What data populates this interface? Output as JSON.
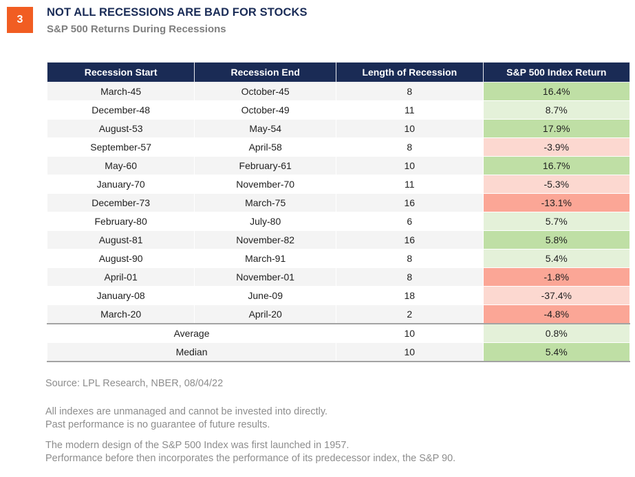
{
  "page": {
    "badge_number": "3",
    "title": "NOT ALL RECESSIONS ARE BAD FOR STOCKS",
    "subtitle": "S&P 500 Returns During Recessions"
  },
  "colors": {
    "accent_orange": "#f15d22",
    "header_navy": "#1a2b55",
    "title_navy": "#1a2c57",
    "stripe_gray": "#f4f4f4",
    "green_strong": "#bfdfa5",
    "green_light": "#e4f1d9",
    "red_strong": "#fba696",
    "red_light": "#fcd8d0",
    "summary_divider_gray": "#a3a3a3"
  },
  "table": {
    "headers": [
      "Recession Start",
      "Recession End",
      "Length of Recession",
      "S&P 500 Index Return"
    ],
    "rows": [
      {
        "start": "March-45",
        "end": "October-45",
        "length": "8",
        "return": "16.4%",
        "return_bg": "#bfdfa5",
        "striped": true
      },
      {
        "start": "December-48",
        "end": "October-49",
        "length": "11",
        "return": "8.7%",
        "return_bg": "#e4f1d9",
        "striped": false
      },
      {
        "start": "August-53",
        "end": "May-54",
        "length": "10",
        "return": "17.9%",
        "return_bg": "#bfdfa5",
        "striped": true
      },
      {
        "start": "September-57",
        "end": "April-58",
        "length": "8",
        "return": "-3.9%",
        "return_bg": "#fcd8d0",
        "striped": false
      },
      {
        "start": "May-60",
        "end": "February-61",
        "length": "10",
        "return": "16.7%",
        "return_bg": "#bfdfa5",
        "striped": true
      },
      {
        "start": "January-70",
        "end": "November-70",
        "length": "11",
        "return": "-5.3%",
        "return_bg": "#fcd8d0",
        "striped": false
      },
      {
        "start": "December-73",
        "end": "March-75",
        "length": "16",
        "return": "-13.1%",
        "return_bg": "#fba696",
        "striped": true
      },
      {
        "start": "February-80",
        "end": "July-80",
        "length": "6",
        "return": "5.7%",
        "return_bg": "#e4f1d9",
        "striped": false
      },
      {
        "start": "August-81",
        "end": "November-82",
        "length": "16",
        "return": "5.8%",
        "return_bg": "#bfdfa5",
        "striped": true
      },
      {
        "start": "August-90",
        "end": "March-91",
        "length": "8",
        "return": "5.4%",
        "return_bg": "#e4f1d9",
        "striped": false
      },
      {
        "start": "April-01",
        "end": "November-01",
        "length": "8",
        "return": "-1.8%",
        "return_bg": "#fba696",
        "striped": true
      },
      {
        "start": "January-08",
        "end": "June-09",
        "length": "18",
        "return": "-37.4%",
        "return_bg": "#fcd8d0",
        "striped": false
      },
      {
        "start": "March-20",
        "end": "April-20",
        "length": "2",
        "return": "-4.8%",
        "return_bg": "#fba696",
        "striped": true
      }
    ],
    "summary_rows": [
      {
        "label": "Average",
        "length": "10",
        "return": "0.8%",
        "return_bg": "#e4f1d9",
        "striped": false
      },
      {
        "label": "Median",
        "length": "10",
        "return": "5.4%",
        "return_bg": "#bfdfa5",
        "striped": true
      }
    ]
  },
  "footnotes": {
    "source": "Source: LPL Research, NBER,  08/04/22",
    "disclaimer_line1": "All indexes are unmanaged and cannot be invested into directly.",
    "disclaimer_line2": "Past performance is no guarantee of future results.",
    "history_line1": "The modern design of the S&P 500 Index was first launched in 1957.",
    "history_line2": "Performance before then incorporates the performance of its predecessor index, the S&P 90."
  },
  "chart_data": {
    "type": "table",
    "title": "NOT ALL RECESSIONS ARE BAD FOR STOCKS",
    "subtitle": "S&P 500 Returns During Recessions",
    "columns": [
      "Recession Start",
      "Recession End",
      "Length of Recession",
      "S&P 500 Index Return"
    ],
    "rows": [
      [
        "March-45",
        "October-45",
        8,
        16.4
      ],
      [
        "December-48",
        "October-49",
        11,
        8.7
      ],
      [
        "August-53",
        "May-54",
        10,
        17.9
      ],
      [
        "September-57",
        "April-58",
        8,
        -3.9
      ],
      [
        "May-60",
        "February-61",
        10,
        16.7
      ],
      [
        "January-70",
        "November-70",
        11,
        -5.3
      ],
      [
        "December-73",
        "March-75",
        16,
        -13.1
      ],
      [
        "February-80",
        "July-80",
        6,
        5.7
      ],
      [
        "August-81",
        "November-82",
        16,
        5.8
      ],
      [
        "August-90",
        "March-91",
        8,
        5.4
      ],
      [
        "April-01",
        "November-01",
        8,
        -1.8
      ],
      [
        "January-08",
        "June-09",
        18,
        -37.4
      ],
      [
        "March-20",
        "April-20",
        2,
        -4.8
      ]
    ],
    "summary": [
      [
        "Average",
        10,
        0.8
      ],
      [
        "Median",
        10,
        5.4
      ]
    ],
    "legend_position": "none",
    "notes": "Return column shaded green for positive values and red/pink for negative values"
  }
}
